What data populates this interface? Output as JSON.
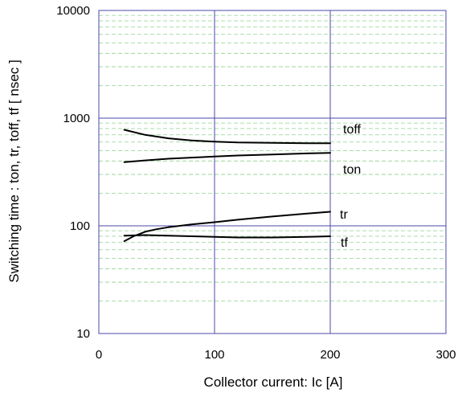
{
  "chart_data": {
    "type": "line",
    "xlabel": "Collector current: Ic [A]",
    "ylabel": "Switching time : ton, tr, toff, tf [ nsec ]",
    "xlim": [
      0,
      300
    ],
    "ylim": [
      10,
      10000
    ],
    "yscale": "log",
    "xticks": [
      "0",
      "100",
      "200",
      "300"
    ],
    "yticks": [
      "10",
      "100",
      "1000",
      "10000"
    ],
    "grid": true,
    "series": [
      {
        "name": "toff",
        "x": [
          22,
          40,
          60,
          80,
          100,
          120,
          150,
          180,
          200
        ],
        "y": [
          780,
          700,
          650,
          620,
          605,
          595,
          590,
          585,
          585
        ]
      },
      {
        "name": "ton",
        "x": [
          22,
          40,
          60,
          80,
          100,
          120,
          150,
          180,
          200
        ],
        "y": [
          390,
          405,
          420,
          430,
          440,
          450,
          460,
          470,
          475
        ]
      },
      {
        "name": "tr",
        "x": [
          22,
          30,
          40,
          50,
          60,
          80,
          100,
          120,
          150,
          180,
          200
        ],
        "y": [
          72,
          80,
          88,
          93,
          97,
          103,
          108,
          114,
          122,
          130,
          135
        ]
      },
      {
        "name": "tf",
        "x": [
          22,
          40,
          60,
          80,
          100,
          120,
          150,
          180,
          200
        ],
        "y": [
          81,
          82,
          81,
          80,
          79,
          78,
          78,
          79,
          80
        ]
      }
    ]
  },
  "colors": {
    "curve": "#000000",
    "major_grid": "#4a4aa8",
    "minor_grid": "#8fd08f",
    "frame": "#4a4aa8"
  }
}
